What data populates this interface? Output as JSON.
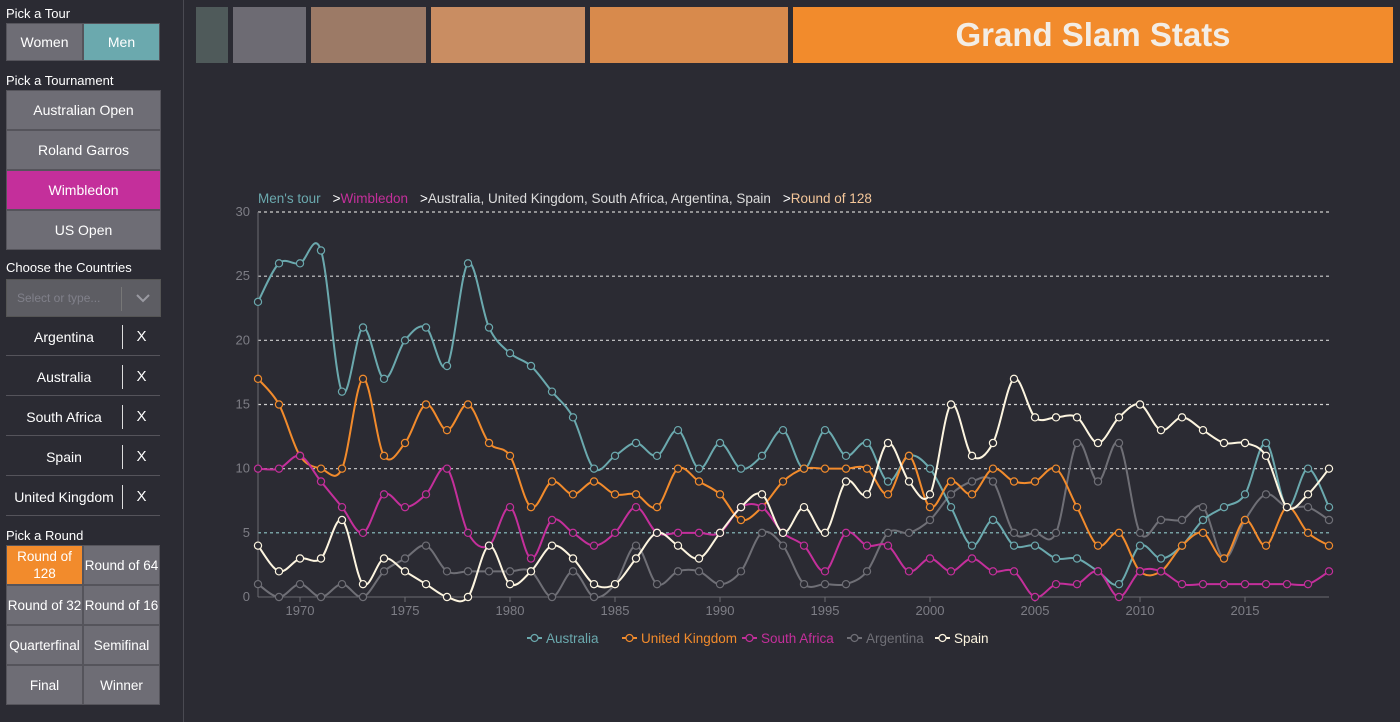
{
  "sidebar": {
    "tour_label": "Pick a Tour",
    "tours": [
      "Women",
      "Men"
    ],
    "tournament_label": "Pick a Tournament",
    "tournaments": [
      "Australian Open",
      "Roland Garros",
      "Wimbledon",
      "US Open"
    ],
    "countries_label": "Choose the Countries",
    "select_placeholder": "Select or type...",
    "selected_countries": [
      "Argentina",
      "Australia",
      "South Africa",
      "Spain",
      "United Kingdom"
    ],
    "remove_label": "X",
    "round_label": "Pick a Round",
    "rounds": [
      "Round of 128",
      "Round of 64",
      "Round of 32",
      "Round of 16",
      "Quarterfinal",
      "Semifinal",
      "Final",
      "Winner"
    ]
  },
  "header": {
    "title": "Grand Slam Stats",
    "swatch_colors": [
      "#4f5a5a",
      "#6d6b73",
      "#9c7a66",
      "#c98d62",
      "#d88a4c"
    ],
    "title_color": "#f28b2c"
  },
  "breadcrumb": {
    "tour": "Men's tour",
    "tournament": "Wimbledon",
    "countries": "Australia, United Kingdom, South Africa, Argentina, Spain",
    "round": "Round of 128",
    "separator": ">"
  },
  "chart_data": {
    "type": "line",
    "xlim": [
      1968,
      2019
    ],
    "ylim": [
      0,
      30
    ],
    "yticks": [
      0,
      5,
      10,
      15,
      20,
      25,
      30
    ],
    "xticks": [
      1970,
      1975,
      1980,
      1985,
      1990,
      1995,
      2000,
      2005,
      2010,
      2015
    ],
    "x": [
      1968,
      1969,
      1970,
      1971,
      1972,
      1973,
      1974,
      1975,
      1976,
      1977,
      1978,
      1979,
      1980,
      1981,
      1982,
      1983,
      1984,
      1985,
      1986,
      1987,
      1988,
      1989,
      1990,
      1991,
      1992,
      1993,
      1994,
      1995,
      1996,
      1997,
      1998,
      1999,
      2000,
      2001,
      2002,
      2003,
      2004,
      2005,
      2006,
      2007,
      2008,
      2009,
      2010,
      2011,
      2012,
      2013,
      2014,
      2015,
      2016,
      2017,
      2018,
      2019
    ],
    "series": [
      {
        "name": "Australia",
        "color": "#6ba9ae",
        "values": [
          23,
          26,
          26,
          27,
          16,
          21,
          17,
          20,
          21,
          18,
          26,
          21,
          19,
          18,
          16,
          14,
          10,
          11,
          12,
          11,
          13,
          10,
          12,
          10,
          11,
          13,
          10,
          13,
          11,
          12,
          9,
          11,
          10,
          7,
          4,
          6,
          4,
          4,
          3,
          3,
          2,
          1,
          4,
          3,
          4,
          6,
          7,
          8,
          12,
          7,
          10,
          7
        ]
      },
      {
        "name": "United Kingdom",
        "color": "#f28b2c",
        "values": [
          17,
          15,
          11,
          10,
          10,
          17,
          11,
          12,
          15,
          13,
          15,
          12,
          11,
          7,
          9,
          8,
          9,
          8,
          8,
          7,
          10,
          9,
          8,
          6,
          7,
          9,
          10,
          10,
          10,
          10,
          8,
          11,
          7,
          9,
          8,
          10,
          9,
          9,
          10,
          7,
          4,
          5,
          2,
          2,
          4,
          5,
          3,
          6,
          4,
          7,
          5,
          4
        ]
      },
      {
        "name": "South Africa",
        "color": "#c42f9b",
        "values": [
          10,
          10,
          11,
          9,
          7,
          5,
          8,
          7,
          8,
          10,
          5,
          4,
          7,
          3,
          6,
          5,
          4,
          5,
          7,
          5,
          5,
          5,
          5,
          7,
          7,
          5,
          4,
          2,
          5,
          4,
          4,
          2,
          3,
          2,
          3,
          2,
          2,
          0,
          1,
          1,
          2,
          0,
          2,
          2,
          1,
          1,
          1,
          1,
          1,
          1,
          1,
          2
        ]
      },
      {
        "name": "Argentina",
        "color": "#6f6f76",
        "values": [
          1,
          0,
          1,
          0,
          1,
          0,
          2,
          3,
          4,
          2,
          2,
          2,
          2,
          2,
          0,
          2,
          0,
          1,
          4,
          1,
          2,
          2,
          1,
          2,
          5,
          4,
          1,
          1,
          1,
          2,
          5,
          5,
          6,
          8,
          9,
          9,
          5,
          5,
          5,
          12,
          9,
          12,
          5,
          6,
          6,
          7,
          3,
          6,
          8,
          7,
          7,
          6
        ]
      },
      {
        "name": "Spain",
        "color": "#fdf5e0",
        "values": [
          4,
          2,
          3,
          3,
          6,
          1,
          3,
          2,
          1,
          0,
          0,
          4,
          1,
          2,
          4,
          3,
          1,
          1,
          3,
          5,
          4,
          3,
          5,
          7,
          8,
          5,
          7,
          5,
          9,
          8,
          12,
          9,
          8,
          15,
          11,
          12,
          17,
          14,
          14,
          14,
          12,
          14,
          15,
          13,
          14,
          13,
          12,
          12,
          11,
          7,
          8,
          10
        ]
      }
    ],
    "legend_position": "bottom"
  }
}
